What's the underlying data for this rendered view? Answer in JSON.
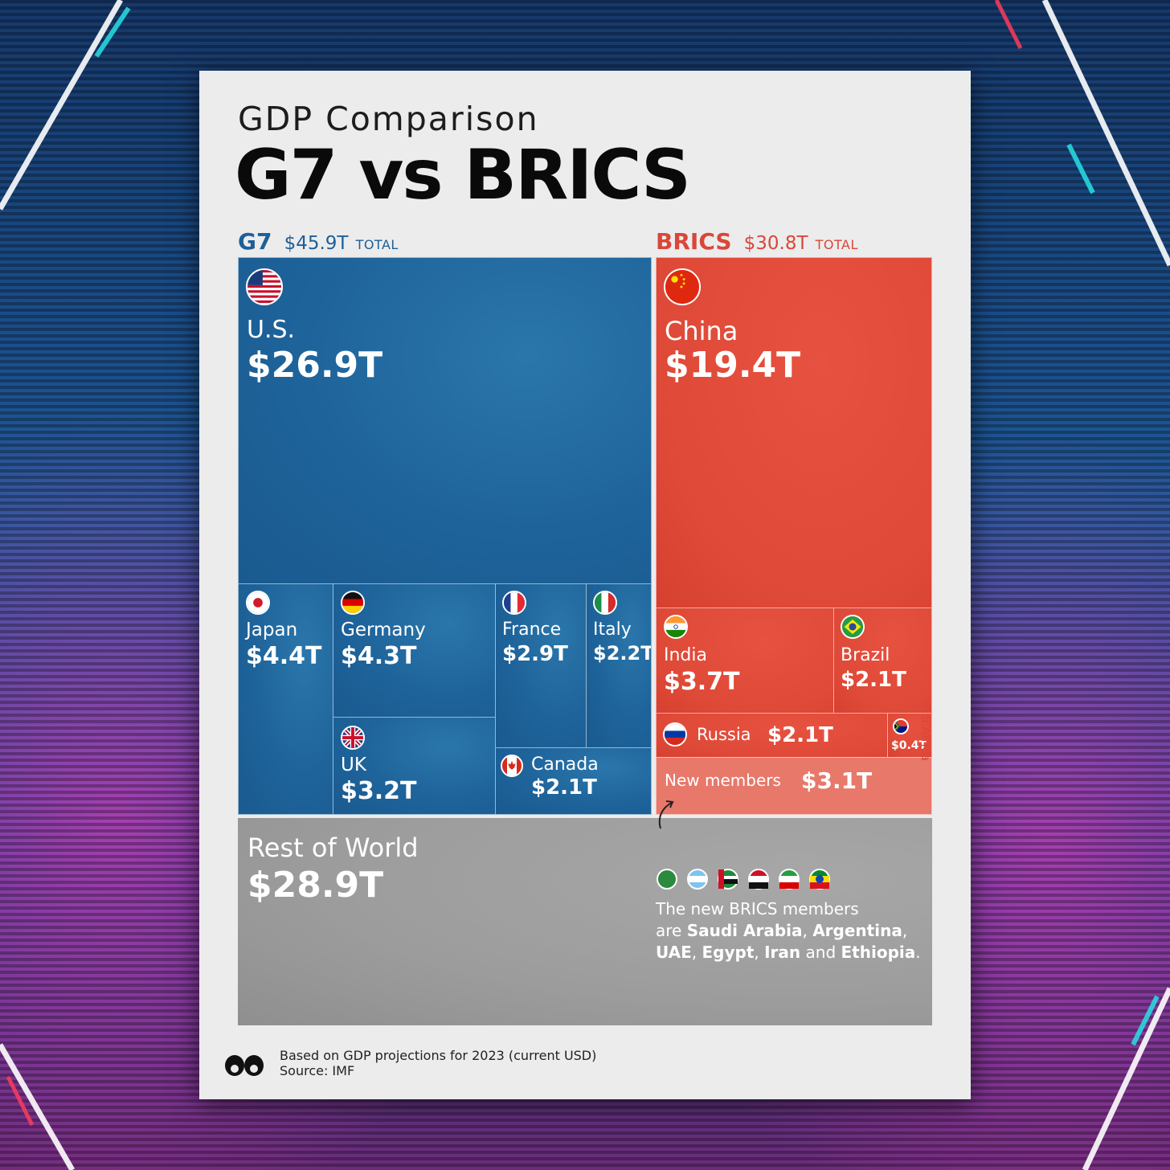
{
  "header": {
    "subtitle": "GDP Comparison",
    "title": "G7 vs BRICS"
  },
  "groups": {
    "g7": {
      "name": "G7",
      "total": "$45.9T",
      "total_label": "TOTAL"
    },
    "brics": {
      "name": "BRICS",
      "total": "$30.8T",
      "total_label": "TOTAL"
    }
  },
  "chart_data": {
    "type": "treemap",
    "title": "G7 vs BRICS",
    "subtitle": "GDP Comparison",
    "unit": "Trillion USD",
    "groups": [
      {
        "name": "G7",
        "total": 45.9,
        "color": "#1d6299",
        "items": [
          {
            "name": "U.S.",
            "value": 26.9,
            "label": "$26.9T"
          },
          {
            "name": "Japan",
            "value": 4.4,
            "label": "$4.4T"
          },
          {
            "name": "Germany",
            "value": 4.3,
            "label": "$4.3T"
          },
          {
            "name": "France",
            "value": 2.9,
            "label": "$2.9T"
          },
          {
            "name": "Italy",
            "value": 2.2,
            "label": "$2.2T"
          },
          {
            "name": "UK",
            "value": 3.2,
            "label": "$3.2T"
          },
          {
            "name": "Canada",
            "value": 2.1,
            "label": "$2.1T"
          }
        ]
      },
      {
        "name": "BRICS",
        "total": 30.8,
        "color": "#df4937",
        "items": [
          {
            "name": "China",
            "value": 19.4,
            "label": "$19.4T"
          },
          {
            "name": "India",
            "value": 3.7,
            "label": "$3.7T"
          },
          {
            "name": "Brazil",
            "value": 2.1,
            "label": "$2.1T"
          },
          {
            "name": "Russia",
            "value": 2.1,
            "label": "$2.1T"
          },
          {
            "name": "S.Africa",
            "value": 0.4,
            "label": "$0.4T"
          },
          {
            "name": "New members",
            "value": 3.1,
            "label": "$3.1T"
          }
        ]
      },
      {
        "name": "Rest of World",
        "color": "#9c9c9c",
        "items": [
          {
            "name": "Rest of World",
            "value": 28.9,
            "label": "$28.9T"
          }
        ]
      }
    ]
  },
  "note": {
    "intro": "The new BRICS members",
    "are": "are",
    "countries": [
      "Saudi Arabia",
      "Argentina",
      "UAE",
      "Egypt",
      "Iran",
      "Ethiopia"
    ],
    "sep_comma": ",",
    "sep_and": "and",
    "end": "."
  },
  "footer": {
    "line1": "Based on GDP projections for 2023 (current USD)",
    "line2": "Source: IMF"
  },
  "colors": {
    "g7_blue": "#1d6299",
    "brics_red": "#df4937",
    "new_members": "#e7786a",
    "rest_of_world": "#9c9c9c",
    "poster_bg": "#ececec"
  },
  "icons": {
    "us": "us-flag-icon",
    "japan": "japan-flag-icon",
    "germany": "germany-flag-icon",
    "france": "france-flag-icon",
    "italy": "italy-flag-icon",
    "uk": "uk-flag-icon",
    "canada": "canada-flag-icon",
    "china": "china-flag-icon",
    "india": "india-flag-icon",
    "brazil": "brazil-flag-icon",
    "russia": "russia-flag-icon",
    "south_africa": "south-africa-flag-icon",
    "logo": "visual-capitalist-logo"
  }
}
